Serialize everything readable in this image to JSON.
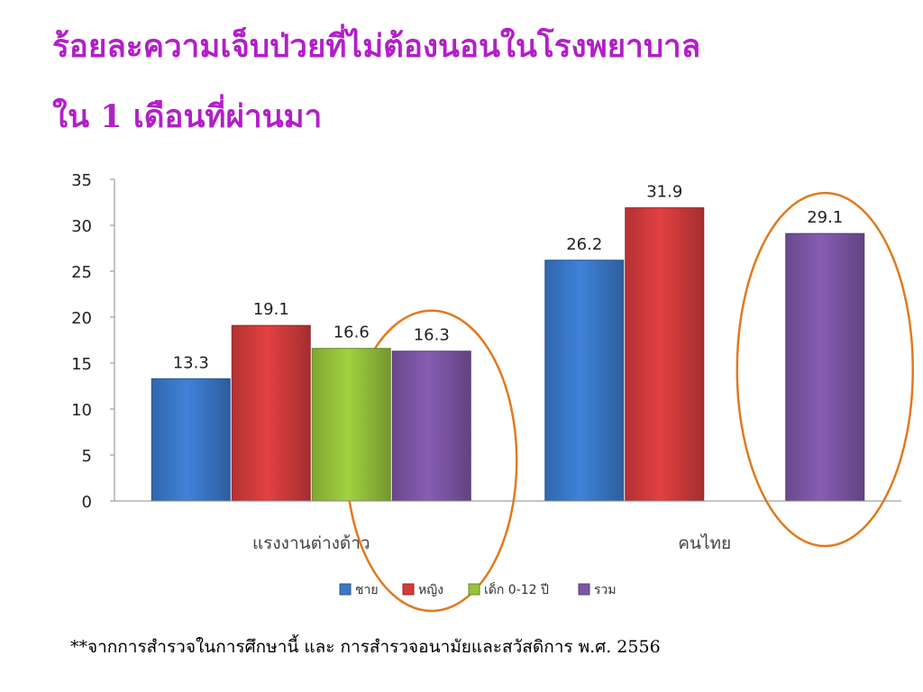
{
  "title_line1": "ร้อยละความเจ็บป่วยที่ไม่ต้องนอนในโรงพยาบาล",
  "title_line2": "ใน 1 เดือนที่ผ่านมา",
  "footnote": "**จากการสำรวจในการศึกษานี้ และ การสำรวจอนามัยและสวัสดิการ พ.ศ. 2556",
  "colors": {
    "title": "#b21fc8",
    "series": [
      "#3a78c9",
      "#d23b3c",
      "#96c23c",
      "#7d56a6"
    ],
    "highlight_ellipse": "#e07a1f"
  },
  "chart_data": {
    "type": "bar",
    "categories": [
      "แรงงานต่างด้าว",
      "คนไทย"
    ],
    "series": [
      {
        "name": "ชาย",
        "values": [
          13.3,
          26.2
        ]
      },
      {
        "name": "หญิง",
        "values": [
          19.1,
          31.9
        ]
      },
      {
        "name": "เด็ก 0-12 ปี",
        "values": [
          16.6,
          null
        ]
      },
      {
        "name": "รวม",
        "values": [
          16.3,
          29.1
        ]
      }
    ],
    "ylim": [
      0,
      35
    ],
    "yticks": [
      0,
      5,
      10,
      15,
      20,
      25,
      30,
      35
    ],
    "grid": false,
    "legend_position": "bottom",
    "highlighted": [
      {
        "category": "แรงงานต่างด้าว",
        "series": "รวม"
      },
      {
        "category": "คนไทย",
        "series": "รวม"
      }
    ]
  }
}
